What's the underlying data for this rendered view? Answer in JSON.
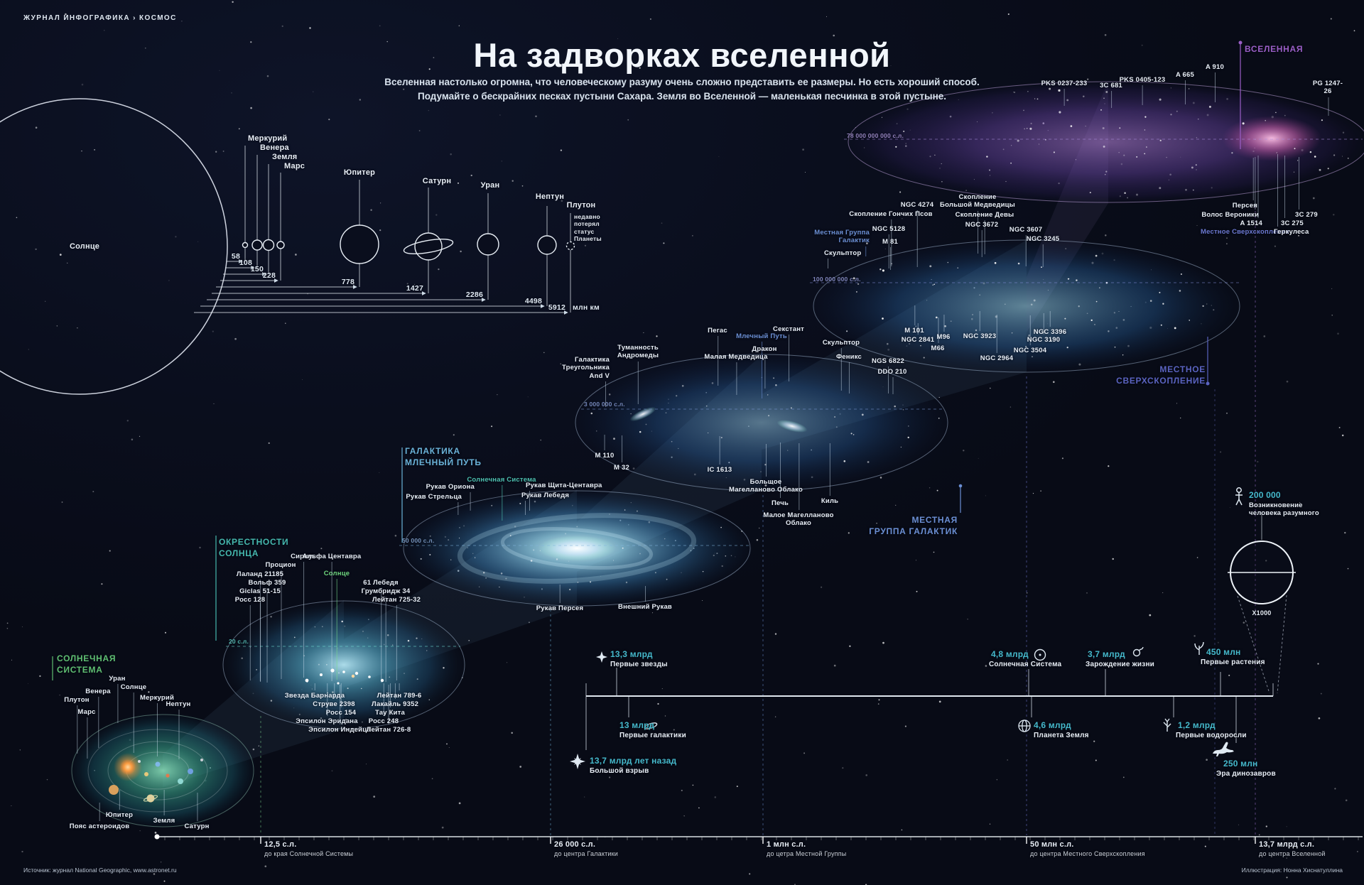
{
  "masthead": "ЖУРНАЛ ИНФОГРАФИКА › КОСМОС",
  "title": "На задворках вселенной",
  "subtitle1": "Вселенная настолько огромна, что человеческому разуму очень сложно представить ее размеры. Но есть хороший способ.",
  "subtitle2": "Подумайте о бескрайних песках пустыни Сахара. Земля во Вселенной — маленькая песчинка в этой пустыне.",
  "planet_chart": {
    "sun": "Солнце",
    "planets": [
      "Меркурий",
      "Венера",
      "Земля",
      "Марс",
      "Юпитер",
      "Сатурн",
      "Уран",
      "Нептун",
      "Плутон"
    ],
    "pluto_note": "недавно\nпотерял\nстатус\nПланеты",
    "distances": [
      "58",
      "108",
      "150",
      "228",
      "778",
      "1427",
      "2286",
      "4498",
      "5912"
    ],
    "unit": "млн км"
  },
  "solar_system": {
    "header": "СОЛНЕЧНАЯ\nСИСТЕМА",
    "labels": [
      "Уран",
      "Венера",
      "Солнце",
      "Плутон",
      "Меркурий",
      "Нептун",
      "Марс",
      "Юпитер",
      "Пояс астероидов",
      "Земля",
      "Сатурн"
    ]
  },
  "neighborhood": {
    "header": "ОКРЕСТНОСТИ\nСОЛНЦА",
    "scale": "20 с.л.",
    "sun": "Солнце",
    "stars": [
      "Сириус",
      "Альфа Центавра",
      "Процион",
      "Лаланд 21185",
      "Вольф 359",
      "Giclas 51-15",
      "Росс 128",
      "61 Лебедя",
      "Грумбридж 34",
      "Лейтан 725-32",
      "Звезда Барнарда",
      "Струве 2398",
      "Росс 154",
      "Эпсилон Эридана",
      "Эпсилон Индейца",
      "Лейтан 789-6",
      "Лакайль 9352",
      "Тау Кита",
      "Росс 248",
      "Лейтан 726-8"
    ]
  },
  "milky_way": {
    "header": "ГАЛАКТИКА\nМЛЕЧНЫЙ ПУТЬ",
    "scale": "50 000 с.л.",
    "solar_system": "Солнечная Система",
    "arms": [
      "Рукав Ориона",
      "Рукав Стрельца",
      "Рукав Щита-Центавра",
      "Рукав Лебедя",
      "Рукав Персея",
      "Внешний Рукав"
    ]
  },
  "local_group": {
    "header": "МЕСТНАЯ\nГРУППА ГАЛАКТИК",
    "scale": "3 000 000 с.л.",
    "milky_way": "Млечный Путь",
    "objects": [
      "Галактика\nТреугольника\nAnd V",
      "Туманность\nАндромеды",
      "Пегас",
      "Секстант",
      "Дракон",
      "Малая Медведица",
      "Скульптор",
      "Феникс",
      "NGS 6822",
      "DDO 210",
      "M 110",
      "M 32",
      "IC 1613",
      "Большое\nМагелланово Облако",
      "Печь",
      "Киль",
      "Малое Магелланово\nОблако"
    ]
  },
  "supercluster": {
    "header": "МЕСТНОЕ\nСВЕРХСКОПЛЕНИЕ",
    "scale": "100 000 000 с.л.",
    "local_group": "Местная Группа\nГалактик",
    "objects": [
      "Скульптор",
      "NGC 5128",
      "M 81",
      "Скопление Гончих Псов",
      "NGC 4274",
      "Скопление\nБольшой Медведицы",
      "Скопление Девы",
      "NGC 3672",
      "NGC 3607",
      "NGC 3245",
      "M 101",
      "NGC 2841",
      "M96",
      "M66",
      "NGC 3923",
      "NGC 2964",
      "NGC 3504",
      "NGC 3190",
      "NGC 3396"
    ]
  },
  "universe": {
    "header": "ВСЕЛЕННАЯ",
    "scale": "78 000 000 000 с.л.",
    "supercluster": "Местное Сверхскопление",
    "objects": [
      "PKS 0237-233",
      "3C 681",
      "PKS 0405-123",
      "A 665",
      "A 910",
      "PG 1247-26",
      "Персея",
      "Волос Вероники",
      "A 1514",
      "3C 279",
      "3C 275",
      "Геркулеса"
    ]
  },
  "timeline": {
    "events": [
      {
        "value": "13,7 млрд лет назад",
        "label": "Большой взрыв"
      },
      {
        "value": "13,3 млрд",
        "label": "Первые звезды"
      },
      {
        "value": "13 млрд",
        "label": "Первые галактики"
      },
      {
        "value": "4,8 млрд",
        "label": "Солнечная Система"
      },
      {
        "value": "4,6 млрд",
        "label": "Планета Земля"
      },
      {
        "value": "3,7 млрд",
        "label": "Зарождение жизни"
      },
      {
        "value": "1,2 млрд",
        "label": "Первые водоросли"
      },
      {
        "value": "450 млн",
        "label": "Первые растения"
      },
      {
        "value": "250 млн",
        "label": "Эра динозавров"
      },
      {
        "value": "200 000",
        "label": "Возникновение\nчеловека разумного"
      }
    ],
    "magnifier": "X1000"
  },
  "scale_bar": {
    "ticks": [
      {
        "value": "12,5 с.л.",
        "label": "до края Солнечной Системы"
      },
      {
        "value": "26 000 с.л.",
        "label": "до центра Галактики"
      },
      {
        "value": "1 млн с.л.",
        "label": "до цетра Местной Группы"
      },
      {
        "value": "50 млн с.л.",
        "label": "до центра Местного Сверхскопления"
      },
      {
        "value": "13,7 млрд с.л.",
        "label": "до центра Вселенной"
      }
    ]
  },
  "footer": {
    "source": "Источник: журнал National Geographic, www.astronet.ru",
    "credit": "Иллюстрация: Нонна Хиснатуллина"
  },
  "colors": {
    "background": "#0a0e1d",
    "solar": "#5fbf72",
    "neighborhood": "#45b8ae",
    "milky_way": "#6ab2d8",
    "local_group": "#6b8fd4",
    "supercluster": "#5a63c0",
    "universe": "#9a5ec6",
    "timeline_accent": "#45b9cc"
  }
}
